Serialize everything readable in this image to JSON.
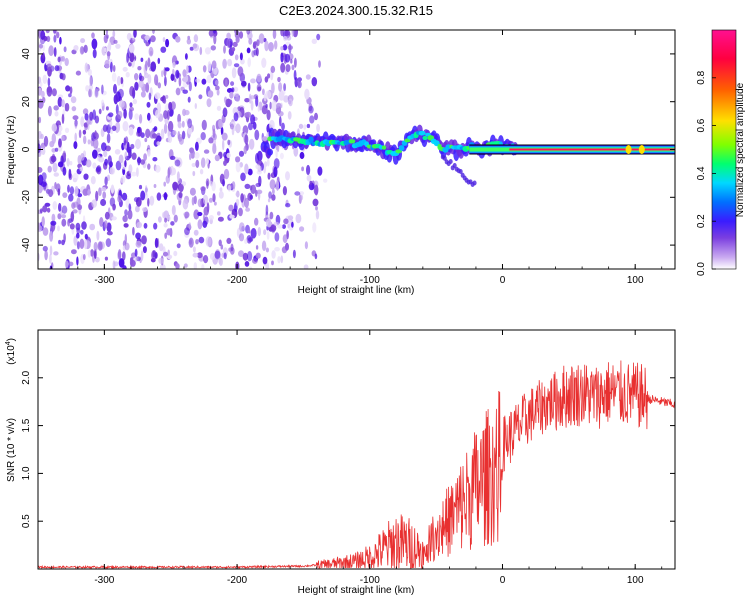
{
  "figure": {
    "title": "C2E3.2024.300.15.32.R15"
  },
  "chart_data": [
    {
      "type": "heatmap",
      "xlabel": "Height of straight line (km)",
      "ylabel": "Frequency (Hz)",
      "xlim": [
        -350,
        130
      ],
      "ylim": [
        -50,
        50
      ],
      "x_ticks": [
        -300,
        -200,
        -100,
        0,
        100
      ],
      "y_ticks": [
        -40,
        -20,
        0,
        20,
        40
      ],
      "grid": false,
      "colorbar": {
        "label": "Normalized spectral amplitude",
        "range": [
          0,
          1
        ],
        "ticks": [
          0.0,
          0.2,
          0.4,
          0.6,
          0.8
        ],
        "tick_labels": [
          "0.0",
          "0.2",
          "0.4",
          "0.6",
          "0.8"
        ],
        "colormap": [
          "#ffffff",
          "#c8a8f0",
          "#7b3fe0",
          "#3a1cff",
          "#0070ff",
          "#00d8ff",
          "#00ff70",
          "#80ff00",
          "#ffe000",
          "#ff6000",
          "#ff0040",
          "#ff1090"
        ]
      },
      "ridge": {
        "x": [
          -175,
          -160,
          -140,
          -120,
          -100,
          -90,
          -80,
          -72,
          -65,
          -55,
          -45,
          -35,
          -25,
          -15,
          -5,
          5,
          20,
          60,
          100,
          130
        ],
        "y": [
          5,
          4,
          3,
          3,
          2,
          0,
          -2,
          3,
          7,
          5,
          1,
          0,
          1,
          0,
          2,
          1,
          0,
          0,
          0,
          0
        ]
      },
      "noise_region_x": [
        -350,
        -150
      ]
    },
    {
      "type": "line",
      "xlabel": "Height of straight line (km)",
      "ylabel": "SNR (10 * v/v)",
      "y_multiplier_label": "(x10",
      "y_multiplier_exp": "4",
      "y_multiplier_close": ")",
      "xlim": [
        -350,
        130
      ],
      "ylim": [
        0,
        2.5
      ],
      "x_ticks": [
        -300,
        -200,
        -100,
        0,
        100
      ],
      "y_ticks": [
        0.5,
        1.0,
        1.5,
        2.0
      ],
      "y_tick_labels": [
        "0.5",
        "1.0",
        "1.5",
        "2.0"
      ],
      "color": "#e83030",
      "series": [
        {
          "x": [
            -350,
            -300,
            -250,
            -200,
            -150,
            -130,
            -110,
            -100,
            -90,
            -80,
            -70,
            -60,
            -50,
            -40,
            -30,
            -20,
            -10,
            0,
            10,
            20,
            30,
            40,
            50,
            60,
            70,
            80,
            90,
            100,
            110,
            120,
            130
          ],
          "values": [
            0.02,
            0.02,
            0.02,
            0.02,
            0.03,
            0.05,
            0.08,
            0.12,
            0.2,
            0.28,
            0.25,
            0.18,
            0.45,
            0.6,
            0.8,
            1.0,
            1.15,
            1.3,
            1.45,
            1.6,
            1.7,
            1.78,
            1.82,
            1.84,
            1.8,
            1.85,
            1.83,
            1.82,
            1.78,
            1.75,
            1.72
          ]
        }
      ]
    }
  ]
}
